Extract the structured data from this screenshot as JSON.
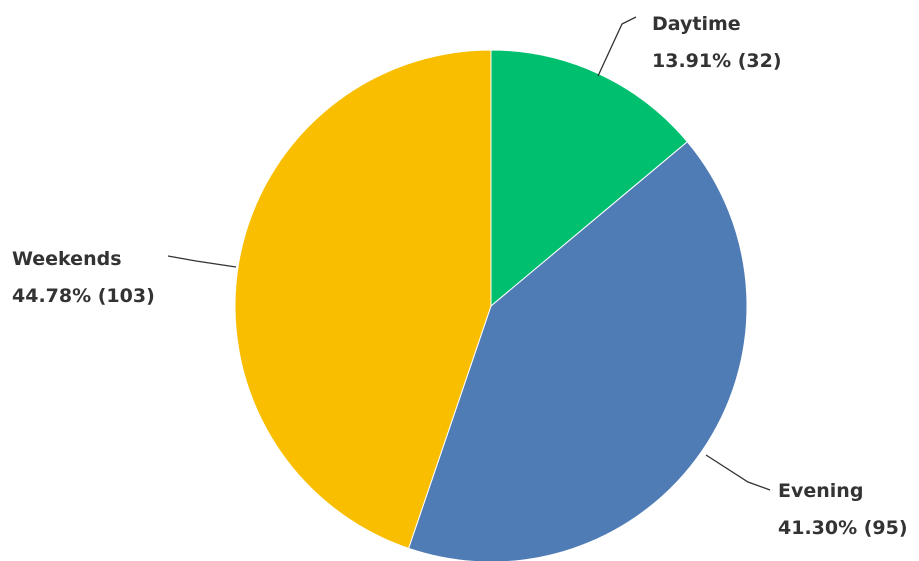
{
  "chart_data": {
    "type": "pie",
    "start_angle_deg": 0,
    "direction": "clockwise",
    "legend": "none",
    "slices": [
      {
        "name": "Daytime",
        "percent_label": "13.91% (32)",
        "value": 32,
        "percent": 13.91,
        "color": "#00BF6F"
      },
      {
        "name": "Evening",
        "percent_label": "41.30% (95)",
        "value": 95,
        "percent": 41.3,
        "color": "#507CB6"
      },
      {
        "name": "Weekends",
        "percent_label": "44.78% (103)",
        "value": 103,
        "percent": 44.78,
        "color": "#F9BE00"
      }
    ]
  }
}
